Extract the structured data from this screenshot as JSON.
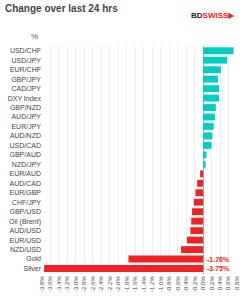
{
  "chart_data": {
    "type": "bar",
    "orientation": "horizontal",
    "title": "Change over last 24 hrs",
    "ylabel": "%",
    "categories": [
      "Silver",
      "Gold",
      "NZD/USD",
      "EUR/USD",
      "AUD/USD",
      "Oil (Brent)",
      "GBP/USD",
      "CHF/JPY",
      "EUR/GBP",
      "AUD/CAD",
      "EUR/AUD",
      "NZD/JPY",
      "GBP/AUD",
      "USD/CAD",
      "AUD/NZD",
      "EUR/JPY",
      "AUD/JPY",
      "GBP/NZD",
      "DXY Index",
      "CAD/JPY",
      "GBP/JPY",
      "EUR/CHF",
      "USD/JPY",
      "USD/CHF"
    ],
    "values": [
      -3.75,
      -1.76,
      -0.52,
      -0.38,
      -0.3,
      -0.28,
      -0.26,
      -0.22,
      -0.18,
      -0.14,
      -0.07,
      0.06,
      0.08,
      0.2,
      0.22,
      0.25,
      0.28,
      0.3,
      0.38,
      0.38,
      0.35,
      0.42,
      0.57,
      0.72
    ],
    "colors": [
      "#EE2222",
      "#EE2222",
      "#EE2222",
      "#EE2222",
      "#EE2222",
      "#EE2222",
      "#EE2222",
      "#EE2222",
      "#EE2222",
      "#EE2222",
      "#EE2222",
      "#00CEC0",
      "#00CEC0",
      "#00CEC0",
      "#00CEC0",
      "#00CEC0",
      "#00CEC0",
      "#00CEC0",
      "#00CEC0",
      "#00CEC0",
      "#00CEC0",
      "#00CEC0",
      "#00CEC0",
      "#00CEC0"
    ],
    "xlim": [
      -3.8,
      0.8
    ],
    "xticks": [
      {
        "value": -3.8,
        "label": "-3.8%"
      },
      {
        "value": -3.6,
        "label": "-3.6%"
      },
      {
        "value": -3.4,
        "label": "-3.4%"
      },
      {
        "value": -3.2,
        "label": "-3.2%"
      },
      {
        "value": -3.0,
        "label": "-3.0%"
      },
      {
        "value": -2.8,
        "label": "-2.8%"
      },
      {
        "value": -2.6,
        "label": "-2.6%"
      },
      {
        "value": -2.4,
        "label": "-2.4%"
      },
      {
        "value": -2.2,
        "label": "-2.2%"
      },
      {
        "value": -2.0,
        "label": "-2.0%"
      },
      {
        "value": -1.8,
        "label": "-1.8%"
      },
      {
        "value": -1.6,
        "label": "-1.6%"
      },
      {
        "value": -1.4,
        "label": "-1.4%"
      },
      {
        "value": -1.2,
        "label": "-1.2%"
      },
      {
        "value": -1.0,
        "label": "-1.0%"
      },
      {
        "value": -0.8,
        "label": "-0.8%"
      },
      {
        "value": -0.6,
        "label": "-0.6%"
      },
      {
        "value": -0.4,
        "label": "-0.4%"
      },
      {
        "value": -0.2,
        "label": "-0.2%"
      },
      {
        "value": 0.0,
        "label": "0.0%"
      },
      {
        "value": 0.2,
        "label": "0.2%"
      },
      {
        "value": 0.4,
        "label": "0.4%"
      },
      {
        "value": 0.6,
        "label": "0.6%"
      },
      {
        "value": 0.8,
        "label": "0.8%"
      }
    ],
    "grid": true,
    "annotations": [
      {
        "text": "-1.76%",
        "category": "Gold",
        "color": "#EE2222"
      },
      {
        "text": "-3.75%",
        "category": "Silver",
        "color": "#EE2222"
      }
    ],
    "logo": [
      {
        "text": "BD",
        "color": "#222222"
      },
      {
        "text": "SWISS",
        "color": "#EE2222"
      },
      {
        "text": "▶",
        "color": "#EE2222"
      }
    ]
  }
}
